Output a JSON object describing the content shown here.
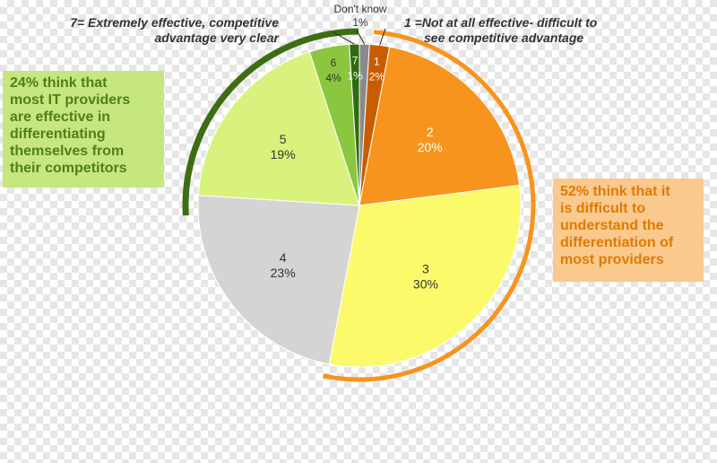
{
  "chart_data": {
    "type": "pie",
    "slices": [
      {
        "label": "Don't know",
        "value": 1,
        "text": "1%",
        "color": "#8a8a8a"
      },
      {
        "label": "1",
        "value": 2,
        "text": "2%",
        "color": "#c85d00"
      },
      {
        "label": "2",
        "value": 20,
        "text": "20%",
        "color": "#f7941d"
      },
      {
        "label": "3",
        "value": 30,
        "text": "30%",
        "color": "#fafa6a"
      },
      {
        "label": "4",
        "value": 23,
        "text": "23%",
        "color": "#d4d4d4"
      },
      {
        "label": "5",
        "value": 19,
        "text": "19%",
        "color": "#d9f27d"
      },
      {
        "label": "6",
        "value": 4,
        "text": "4%",
        "color": "#8cc63f"
      },
      {
        "label": "7",
        "value": 1,
        "text": "1%",
        "color": "#2e6b0e"
      }
    ],
    "annotations": {
      "top_left": [
        "7= Extremely effective, competitive",
        "advantage very clear"
      ],
      "top_right": [
        "1 =Not at all effective- difficult to",
        "see competitive advantage"
      ],
      "left_callout": [
        "24% think that",
        "most IT providers",
        "are effective in",
        "differentiating",
        "themselves from",
        "their competitors"
      ],
      "right_callout": [
        "52% think that it",
        "is difficult to",
        "understand the",
        "differentiation of",
        "most providers"
      ]
    },
    "colors": {
      "left_arc": "#3d6e12",
      "right_arc": "#f7941d"
    }
  }
}
